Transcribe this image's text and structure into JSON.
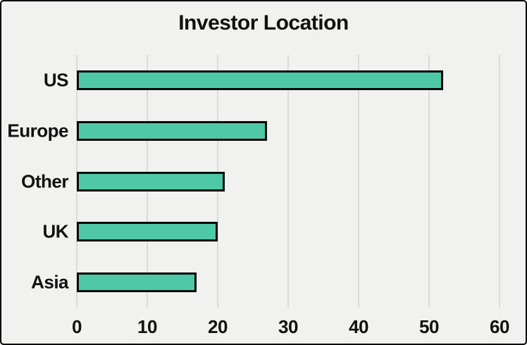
{
  "chart_data": {
    "type": "bar",
    "orientation": "horizontal",
    "title": "Investor Location",
    "categories": [
      "US",
      "Europe",
      "Other",
      "UK",
      "Asia"
    ],
    "values": [
      52,
      27,
      21,
      20,
      17
    ],
    "xlabel": "",
    "ylabel": "",
    "xlim": [
      0,
      60
    ],
    "xticks": [
      0,
      10,
      20,
      30,
      40,
      50,
      60
    ],
    "grid": "vertical",
    "legend": "none",
    "colors": {
      "bar_fill": "#4EC8A6",
      "bar_border": "#0A0A0A",
      "background": "#F1F1EF",
      "gridline": "#DBDBDB",
      "text": "#111111",
      "frame_border": "#000000"
    }
  }
}
